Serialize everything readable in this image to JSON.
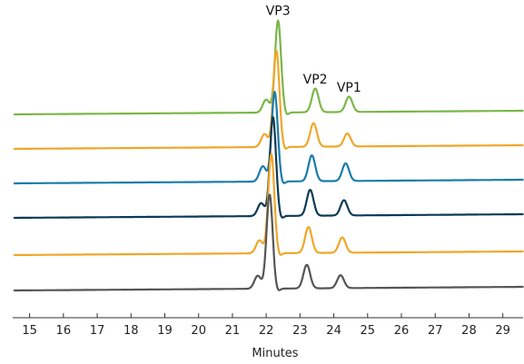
{
  "chart_data": {
    "type": "line",
    "title": "",
    "xlabel": "Minutes",
    "ylabel": "",
    "xlim": [
      14.5,
      29.6
    ],
    "x_ticks": [
      "15",
      "16",
      "17",
      "18",
      "19",
      "20",
      "21",
      "22",
      "23",
      "24",
      "25",
      "26",
      "27",
      "28",
      "29"
    ],
    "grid": false,
    "legend": "none",
    "stacked_offset_traces": true,
    "series": [
      {
        "color": "#7ab648",
        "baseline_left": 0.0,
        "baseline_right": 0.1,
        "peaks": [
          {
            "x": 22.0,
            "height": 0.55
          },
          {
            "x": 22.35,
            "height": 3.9
          },
          {
            "x": 23.45,
            "height": 1.0
          },
          {
            "x": 24.45,
            "height": 0.65
          }
        ]
      },
      {
        "color": "#f0a629",
        "baseline_left": 0.0,
        "baseline_right": 0.1,
        "peaks": [
          {
            "x": 21.95,
            "height": 0.55
          },
          {
            "x": 22.3,
            "height": 4.1
          },
          {
            "x": 23.4,
            "height": 1.0
          },
          {
            "x": 24.4,
            "height": 0.55
          }
        ]
      },
      {
        "color": "#1b7bab",
        "baseline_left": 0.0,
        "baseline_right": 0.1,
        "peaks": [
          {
            "x": 21.9,
            "height": 0.65
          },
          {
            "x": 22.25,
            "height": 3.8
          },
          {
            "x": 23.35,
            "height": 1.1
          },
          {
            "x": 24.35,
            "height": 0.75
          }
        ]
      },
      {
        "color": "#0c3a54",
        "baseline_left": 0.0,
        "baseline_right": 0.1,
        "peaks": [
          {
            "x": 21.85,
            "height": 0.55
          },
          {
            "x": 22.2,
            "height": 4.2
          },
          {
            "x": 23.3,
            "height": 1.1
          },
          {
            "x": 24.3,
            "height": 0.65
          }
        ]
      },
      {
        "color": "#f0a629",
        "baseline_left": 0.0,
        "baseline_right": 0.1,
        "peaks": [
          {
            "x": 21.8,
            "height": 0.55
          },
          {
            "x": 22.15,
            "height": 4.2
          },
          {
            "x": 23.25,
            "height": 1.1
          },
          {
            "x": 24.25,
            "height": 0.65
          }
        ]
      },
      {
        "color": "#555555",
        "baseline_left": 0.0,
        "baseline_right": 0.1,
        "peaks": [
          {
            "x": 21.75,
            "height": 0.55
          },
          {
            "x": 22.1,
            "height": 4.0
          },
          {
            "x": 23.2,
            "height": 1.0
          },
          {
            "x": 24.2,
            "height": 0.55
          }
        ]
      }
    ],
    "annotations": [
      {
        "text": "VP3",
        "x": 22.35
      },
      {
        "text": "VP2",
        "x": 23.45
      },
      {
        "text": "VP1",
        "x": 24.45
      }
    ]
  }
}
